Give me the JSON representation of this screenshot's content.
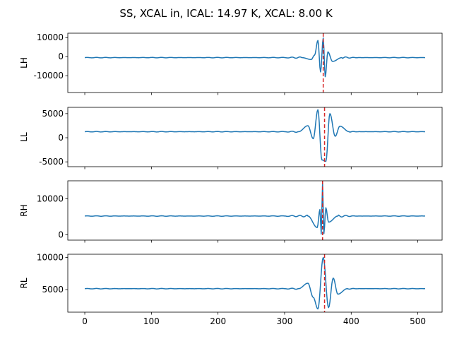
{
  "figure": {
    "title": "SS, XCAL in, ICAL: 14.97 K, XCAL: 8.00 K"
  },
  "chart_data": {
    "type": "line",
    "title": "SS, XCAL in, ICAL: 14.97 K, XCAL: 8.00 K",
    "shared_x": true,
    "x_range": [
      0,
      511
    ],
    "xlim": [
      -25.5,
      536.5
    ],
    "x_ticks": [
      0,
      100,
      200,
      300,
      400,
      500
    ],
    "line_color": "#1f77b4",
    "marker_color": "#d62728",
    "marker_style": "dashed vertical line",
    "panels": [
      {
        "ylabel": "LH",
        "ylim": [
          -18800,
          12300
        ],
        "y_ticks": [
          -10000,
          0,
          10000
        ],
        "baseline": -500,
        "peak_index": 358,
        "marker_x": 358,
        "features": [
          {
            "x": 340,
            "y": -1500
          },
          {
            "x": 345,
            "y": 800
          },
          {
            "x": 350,
            "y": 8500
          },
          {
            "x": 354,
            "y": -8000
          },
          {
            "x": 358,
            "y": 9800
          },
          {
            "x": 361,
            "y": -10500
          },
          {
            "x": 365,
            "y": 2500
          },
          {
            "x": 372,
            "y": -2500
          }
        ]
      },
      {
        "ylabel": "LL",
        "ylim": [
          -6000,
          6300
        ],
        "y_ticks": [
          -5000,
          0,
          5000
        ],
        "baseline": 1250,
        "peak_index": 358,
        "marker_x": 360,
        "features": [
          {
            "x": 335,
            "y": 2500
          },
          {
            "x": 343,
            "y": -200
          },
          {
            "x": 350,
            "y": 5800
          },
          {
            "x": 356,
            "y": -4600
          },
          {
            "x": 362,
            "y": -4900
          },
          {
            "x": 368,
            "y": 5000
          },
          {
            "x": 376,
            "y": 300
          },
          {
            "x": 383,
            "y": 2400
          }
        ]
      },
      {
        "ylabel": "RH",
        "ylim": [
          -1500,
          15000
        ],
        "y_ticks": [
          0,
          10000
        ],
        "baseline": 5200,
        "peak_index": 357,
        "marker_x": 357,
        "features": [
          {
            "x": 349,
            "y": 2000
          },
          {
            "x": 353,
            "y": 7000
          },
          {
            "x": 355,
            "y": 200
          },
          {
            "x": 357,
            "y": 14500
          },
          {
            "x": 359,
            "y": 300
          },
          {
            "x": 362,
            "y": 7500
          },
          {
            "x": 366,
            "y": 3500
          }
        ]
      },
      {
        "ylabel": "RL",
        "ylim": [
          1500,
          10500
        ],
        "y_ticks": [
          5000,
          10000
        ],
        "baseline": 5150,
        "peak_index": 358,
        "marker_x": 360,
        "features": [
          {
            "x": 335,
            "y": 6000
          },
          {
            "x": 343,
            "y": 3800
          },
          {
            "x": 350,
            "y": 2000
          },
          {
            "x": 358,
            "y": 10000
          },
          {
            "x": 366,
            "y": 2200
          },
          {
            "x": 373,
            "y": 6800
          },
          {
            "x": 380,
            "y": 4300
          }
        ]
      }
    ]
  }
}
